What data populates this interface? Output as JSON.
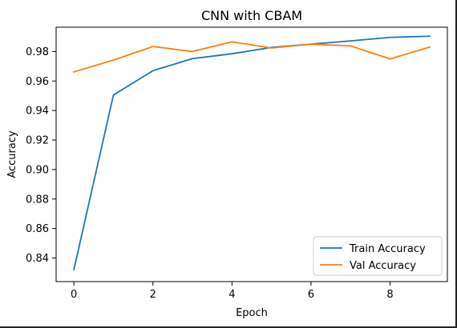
{
  "chart_data": {
    "type": "line",
    "title": "CNN with CBAM",
    "xlabel": "Epoch",
    "ylabel": "Accuracy",
    "x": [
      0,
      1,
      2,
      3,
      4,
      5,
      6,
      7,
      8,
      9
    ],
    "xlim": [
      -0.45,
      9.45
    ],
    "ylim": [
      0.824,
      0.9965
    ],
    "xticks": [
      0,
      2,
      4,
      6,
      8
    ],
    "yticks": [
      0.84,
      0.86,
      0.88,
      0.9,
      0.92,
      0.94,
      0.96,
      0.98
    ],
    "series": [
      {
        "name": "Train Accuracy",
        "color": "#1f77b4",
        "values": [
          0.8322,
          0.9505,
          0.967,
          0.9752,
          0.9785,
          0.9828,
          0.985,
          0.9872,
          0.9896,
          0.9904
        ]
      },
      {
        "name": "Val Accuracy",
        "color": "#ff7f0e",
        "values": [
          0.9662,
          0.9742,
          0.9834,
          0.98,
          0.9866,
          0.9824,
          0.985,
          0.9838,
          0.975,
          0.983
        ]
      }
    ],
    "grid": false,
    "legend_position": "lower-right"
  }
}
